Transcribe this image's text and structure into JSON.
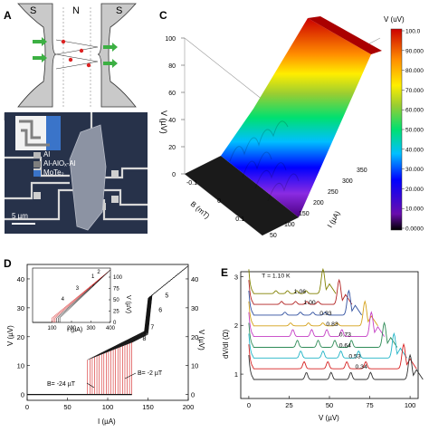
{
  "panel_labels": {
    "a": "A",
    "b": "B",
    "c": "C",
    "d": "D",
    "e": "E"
  },
  "panelA": {
    "left_label": "S",
    "mid_label": "N",
    "right_label": "S"
  },
  "panelB": {
    "legend": [
      {
        "label": "Al",
        "color": "#b9b9b9"
      },
      {
        "label": "Al-AlOₓ-Al",
        "color": "#7e7e7e"
      },
      {
        "label": "MoTe₂",
        "color": "#3a74c9"
      }
    ],
    "scalebar": "5 µm"
  },
  "panelC": {
    "colorbar_title": "V (uV)",
    "colorbar_ticks": [
      "100.0",
      "90.000",
      "80.000",
      "70.000",
      "60.000",
      "50.000",
      "40.000",
      "30.000",
      "20.000",
      "10.000",
      "0.0000"
    ],
    "zlabel": "V (µV)",
    "zticks": [
      "0",
      "20",
      "40",
      "60",
      "80",
      "100"
    ],
    "xlabel": "B (mT)",
    "xticks": [
      "-0.1",
      "0",
      "0.1"
    ],
    "ylabel": "I (µA)",
    "yticks": [
      "50",
      "100",
      "150",
      "200",
      "250",
      "300",
      "350"
    ]
  },
  "panelD": {
    "xlabel": "I (µA)",
    "ylabel": "V (µV)",
    "xticks": [
      "0",
      "50",
      "100",
      "150",
      "200"
    ],
    "yticks": [
      "0",
      "10",
      "20",
      "30",
      "40"
    ],
    "inset_xticks": [
      "100",
      "200",
      "300",
      "400"
    ],
    "inset_yticks": [
      "0",
      "25",
      "50",
      "75",
      "100"
    ],
    "inset_ylabel": "V (µV)",
    "inset_xlabel": "I (µA)",
    "inset_numbers": [
      "1",
      "2",
      "3",
      "4"
    ],
    "step_numbers": [
      "5",
      "6",
      "7",
      "8"
    ],
    "annot_left": "B= -24 µT",
    "annot_right": "B= -2 µT"
  },
  "panelE": {
    "xlabel": "V (µV)",
    "ylabel": "dV/dI (Ω)",
    "xticks": [
      "0",
      "25",
      "50",
      "75",
      "100"
    ],
    "yticks": [
      "1",
      "2",
      "3"
    ],
    "temps": [
      "T = 1.10 K",
      "1.06",
      "1.00",
      "0.93",
      "0.83",
      "0.73",
      "0.64",
      "0.53",
      "0.34"
    ],
    "colors": [
      "#808000",
      "#b22222",
      "#2f4f9f",
      "#d4a017",
      "#c43ec4",
      "#2e8b57",
      "#1fb3c6",
      "#d62020",
      "#303030"
    ]
  },
  "chart_data": [
    {
      "type": "line",
      "title": "",
      "xlabel": "I (µA)",
      "ylabel": "V (µV)",
      "xlim": [
        0,
        200
      ],
      "ylim": [
        -2,
        45
      ],
      "series": [
        {
          "values": [
            [
              0,
              0
            ],
            [
              130,
              0
            ],
            [
              132,
              18
            ],
            [
              145,
              24
            ],
            [
              160,
              28
            ],
            [
              175,
              32
            ],
            [
              190,
              39
            ],
            [
              200,
              45
            ]
          ]
        },
        {
          "values": [
            [
              0,
              0
            ],
            [
              75,
              0
            ],
            [
              78,
              12
            ],
            [
              100,
              16
            ],
            [
              130,
              20
            ],
            [
              160,
              28
            ],
            [
              190,
              39
            ],
            [
              200,
              45
            ]
          ]
        }
      ]
    },
    {
      "type": "line",
      "title": "",
      "xlabel": "V (µV)",
      "ylabel": "dV/dI (Ω)",
      "xlim": [
        -5,
        105
      ],
      "ylim": [
        0.5,
        3.1
      ]
    }
  ]
}
